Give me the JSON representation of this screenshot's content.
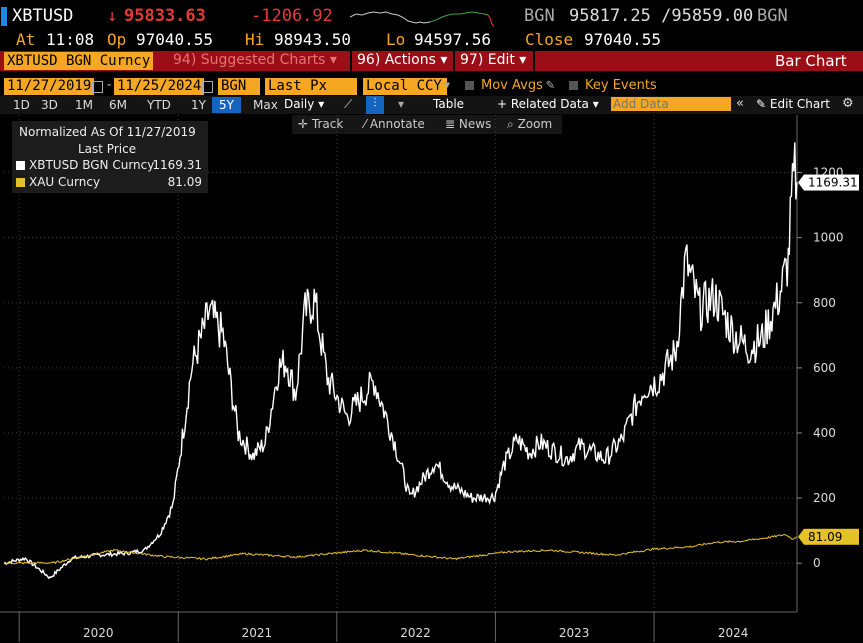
{
  "header": {
    "ticker": "XBTUSD",
    "last_arrow": "↓",
    "last_price": "95833.63",
    "change": "-1206.92",
    "source": "BGN",
    "bid_ask": "95817.25 /95859.00",
    "source2": "BGN",
    "at_label": "At",
    "time": "11:08",
    "op_label": "Op",
    "open": "97040.55",
    "hi_label": "Hi",
    "high": "98943.50",
    "lo_label": "Lo",
    "low": "94597.56",
    "close_label": "Close",
    "close": "97040.55"
  },
  "menubar": {
    "security": "XBTUSD BGN Curncy",
    "suggested": "94) Suggested Charts",
    "actions": "96) Actions",
    "edit": "97) Edit",
    "chart_type": "Bar Chart"
  },
  "settings": {
    "start_date": "11/27/2019",
    "end_date": "11/25/2024",
    "source": "BGN",
    "field": "Last Px",
    "currency": "Local CCY",
    "mov_avgs": "Mov Avgs",
    "key_events": "Key Events"
  },
  "toolbar": {
    "periods": [
      "1D",
      "3D",
      "1M",
      "6M",
      "YTD",
      "1Y",
      "5Y",
      "Max"
    ],
    "active_period": "5Y",
    "frequency": "Daily",
    "table": "Table",
    "related": "+ Related Data",
    "add_data_placeholder": "Add Data",
    "edit_chart": "Edit Chart"
  },
  "tools": {
    "track": "Track",
    "annotate": "Annotate",
    "news": "News",
    "zoom": "Zoom"
  },
  "legend": {
    "title": "Normalized As Of 11/27/2019",
    "subtitle": "Last Price",
    "items": [
      {
        "name": "XBTUSD BGN Curncy",
        "value": "1169.31",
        "color": "#ffffff"
      },
      {
        "name": "XAU Curncy",
        "value": "81.09",
        "color": "#e6c229"
      }
    ]
  },
  "colors": {
    "btc": "#ffffff",
    "gold": "#e6c229",
    "accent_orange": "#f5a623",
    "menubar_red": "#9a0f16",
    "active_blue": "#1565c0"
  },
  "chart_data": {
    "type": "line",
    "title": "",
    "xlabel": "",
    "ylabel": "",
    "x_tick_labels": [
      "2020",
      "2021",
      "2022",
      "2023",
      "2024"
    ],
    "y_ticks": [
      0,
      200,
      400,
      600,
      800,
      1000,
      1200
    ],
    "ylim": [
      -150,
      1300
    ],
    "x_range": [
      "2019-11-27",
      "2024-11-25"
    ],
    "grid": true,
    "series": [
      {
        "name": "XBTUSD BGN Curncy",
        "last_value": 1169.31,
        "x": [
          "2019-11-27",
          "2020-01-15",
          "2020-03-12",
          "2020-05-01",
          "2020-07-01",
          "2020-09-01",
          "2020-10-15",
          "2020-11-20",
          "2020-12-20",
          "2021-01-08",
          "2021-02-01",
          "2021-02-20",
          "2021-03-13",
          "2021-04-14",
          "2021-05-19",
          "2021-06-22",
          "2021-07-20",
          "2021-08-20",
          "2021-09-07",
          "2021-09-28",
          "2021-10-20",
          "2021-11-10",
          "2021-12-10",
          "2022-01-24",
          "2022-03-28",
          "2022-05-12",
          "2022-06-18",
          "2022-08-15",
          "2022-09-20",
          "2022-11-09",
          "2022-12-30",
          "2023-01-20",
          "2023-02-20",
          "2023-03-20",
          "2023-04-14",
          "2023-06-15",
          "2023-07-15",
          "2023-09-11",
          "2023-10-20",
          "2023-11-15",
          "2023-12-10",
          "2024-01-10",
          "2024-02-20",
          "2024-03-14",
          "2024-04-15",
          "2024-05-20",
          "2024-06-10",
          "2024-07-05",
          "2024-08-05",
          "2024-09-06",
          "2024-10-15",
          "2024-11-05",
          "2024-11-12",
          "2024-11-20",
          "2024-11-25"
        ],
        "values": [
          0,
          15,
          -45,
          15,
          25,
          30,
          40,
          90,
          180,
          360,
          600,
          680,
          770,
          700,
          400,
          330,
          370,
          600,
          620,
          520,
          770,
          810,
          570,
          450,
          560,
          380,
          200,
          310,
          240,
          200,
          205,
          300,
          380,
          340,
          370,
          320,
          360,
          320,
          380,
          470,
          540,
          560,
          650,
          930,
          780,
          820,
          760,
          700,
          660,
          690,
          820,
          930,
          1100,
          1200,
          1169.31
        ]
      },
      {
        "name": "XAU Curncy",
        "last_value": 81.09,
        "x": [
          "2019-11-27",
          "2020-03-19",
          "2020-08-06",
          "2020-11-30",
          "2021-03-08",
          "2021-06-01",
          "2021-09-30",
          "2022-03-08",
          "2022-09-28",
          "2023-01-30",
          "2023-05-04",
          "2023-10-05",
          "2023-12-28",
          "2024-03-28",
          "2024-05-20",
          "2024-07-17",
          "2024-09-26",
          "2024-10-30",
          "2024-11-14",
          "2024-11-25"
        ],
        "values": [
          0,
          1,
          40,
          20,
          13,
          29,
          19,
          40,
          13,
          35,
          40,
          25,
          43,
          51,
          64,
          67,
          80,
          88,
          75,
          81.09
        ]
      }
    ]
  }
}
